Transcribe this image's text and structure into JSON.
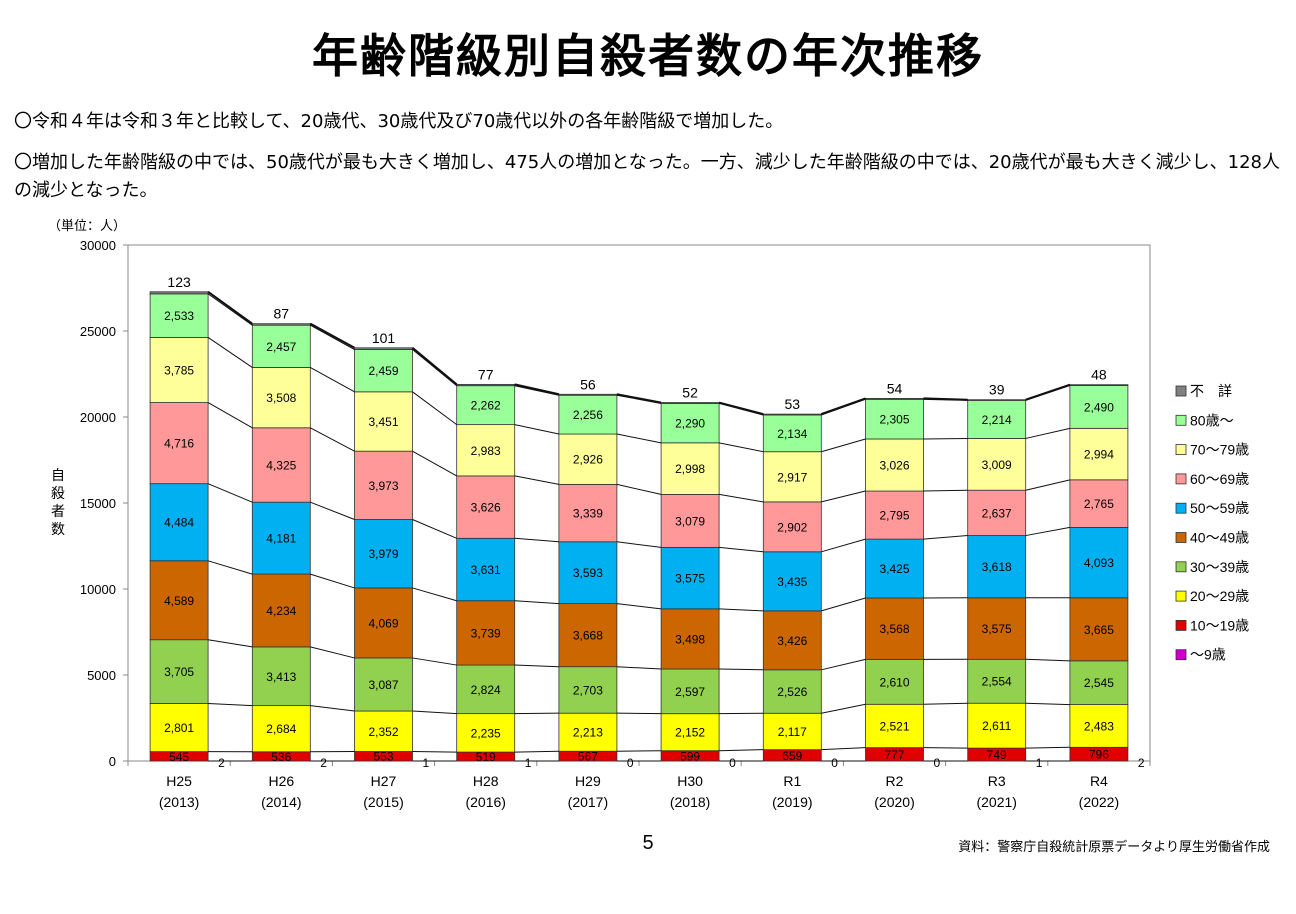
{
  "page": {
    "title": "年齢階級別自殺者数の年次推移",
    "bullets": [
      "〇令和４年は令和３年と比較して、20歳代、30歳代及び70歳代以外の各年齢階級で増加した。",
      "〇増加した年齢階級の中では、50歳代が最も大きく増加し、475人の増加となった。一方、減少した年齢階級の中では、20歳代が最も大きく減少し、128人の減少となった。"
    ],
    "page_number": "5",
    "source": "資料：警察庁自殺統計原票データより厚生労働省作成"
  },
  "chart_data": {
    "type": "bar",
    "stacked": true,
    "unit_label": "（単位：人）",
    "ylabel": "自殺者数",
    "ylim": [
      0,
      30000
    ],
    "yticks": [
      0,
      5000,
      10000,
      15000,
      20000,
      25000,
      30000
    ],
    "categories": [
      "H25",
      "H26",
      "H27",
      "H28",
      "H29",
      "H30",
      "R1",
      "R2",
      "R3",
      "R4"
    ],
    "category_years": [
      "(2013)",
      "(2014)",
      "(2015)",
      "(2016)",
      "(2017)",
      "(2018)",
      "(2019)",
      "(2020)",
      "(2021)",
      "(2022)"
    ],
    "legend_position": "right",
    "series": [
      {
        "name": "～9歳",
        "color": "#cc00cc",
        "values": [
          2,
          2,
          1,
          1,
          0,
          0,
          0,
          0,
          1,
          2
        ]
      },
      {
        "name": "10～19歳",
        "color": "#e00000",
        "values": [
          545,
          536,
          553,
          519,
          567,
          599,
          659,
          777,
          749,
          796
        ]
      },
      {
        "name": "20～29歳",
        "color": "#ffff00",
        "values": [
          2801,
          2684,
          2352,
          2235,
          2213,
          2152,
          2117,
          2521,
          2611,
          2483
        ]
      },
      {
        "name": "30～39歳",
        "color": "#92d050",
        "values": [
          3705,
          3413,
          3087,
          2824,
          2703,
          2597,
          2526,
          2610,
          2554,
          2545
        ]
      },
      {
        "name": "40～49歳",
        "color": "#cc6600",
        "values": [
          4589,
          4234,
          4069,
          3739,
          3668,
          3498,
          3426,
          3568,
          3575,
          3665
        ]
      },
      {
        "name": "50～59歳",
        "color": "#00b0f0",
        "values": [
          4484,
          4181,
          3979,
          3631,
          3593,
          3575,
          3435,
          3425,
          3618,
          4093
        ]
      },
      {
        "name": "60～69歳",
        "color": "#ff9999",
        "values": [
          4716,
          4325,
          3973,
          3626,
          3339,
          3079,
          2902,
          2795,
          2637,
          2765
        ]
      },
      {
        "name": "70～79歳",
        "color": "#ffff99",
        "values": [
          3785,
          3508,
          3451,
          2983,
          2926,
          2998,
          2917,
          3026,
          3009,
          2994
        ]
      },
      {
        "name": "80歳～",
        "color": "#99ff99",
        "values": [
          2533,
          2457,
          2459,
          2262,
          2256,
          2290,
          2134,
          2305,
          2214,
          2490
        ]
      },
      {
        "name": "不　詳",
        "color": "#808080",
        "values": [
          123,
          87,
          101,
          77,
          56,
          52,
          53,
          54,
          39,
          48
        ]
      }
    ]
  }
}
